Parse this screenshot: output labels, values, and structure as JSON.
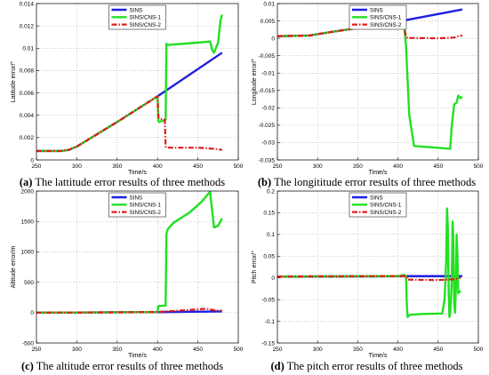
{
  "captions": [
    {
      "tag": "(a)",
      "text": " The lattitude error results of three methods"
    },
    {
      "tag": "(b)",
      "text": " The longititude error results of three methods"
    },
    {
      "tag": "(c)",
      "text": " The altitude error results of three methods"
    },
    {
      "tag": "(d)",
      "text": " The pitch error results of three methods"
    }
  ],
  "colors": {
    "SINS": "#1f1fe0",
    "SINS/CNS-1": "#22e022",
    "SINS/CNS-2": "#e01b1b"
  },
  "chart_data": [
    {
      "type": "line",
      "xlabel": "Time/s",
      "ylabel": "Latitude error/°",
      "xlim": [
        250,
        500
      ],
      "ylim": [
        0,
        0.014
      ],
      "xticks": [
        "250",
        "300",
        "350",
        "400",
        "450",
        "500"
      ],
      "yticks": [
        "0",
        "0.002",
        "0.004",
        "0.006",
        "0.008",
        "0.01",
        "0.012",
        "0.014"
      ],
      "legend_position": "top-center",
      "grid": true,
      "series": [
        {
          "name": "SINS",
          "x": [
            250,
            280,
            290,
            300,
            350,
            400,
            480
          ],
          "y": [
            0.0008,
            0.0008,
            0.0009,
            0.0012,
            0.0034,
            0.0057,
            0.0096
          ]
        },
        {
          "name": "SINS/CNS-1",
          "x": [
            250,
            280,
            290,
            300,
            350,
            400,
            401,
            402,
            410,
            411,
            412,
            450,
            465,
            468,
            470,
            475,
            478,
            480
          ],
          "y": [
            0.0008,
            0.0008,
            0.0009,
            0.0012,
            0.0034,
            0.0057,
            0.0035,
            0.0034,
            0.0036,
            0.0104,
            0.0103,
            0.0105,
            0.0106,
            0.0098,
            0.0096,
            0.0105,
            0.0125,
            0.013
          ]
        },
        {
          "name": "SINS/CNS-2",
          "x": [
            250,
            280,
            290,
            300,
            350,
            400,
            401,
            402,
            409,
            410,
            411,
            450,
            470,
            480
          ],
          "y": [
            0.0008,
            0.0008,
            0.0009,
            0.0012,
            0.0034,
            0.0057,
            0.0038,
            0.0037,
            0.0036,
            0.0012,
            0.0011,
            0.0011,
            0.001,
            0.0009
          ]
        }
      ]
    },
    {
      "type": "line",
      "xlabel": "Time/s",
      "ylabel": "Longitude error/°",
      "xlim": [
        250,
        500
      ],
      "ylim": [
        -0.035,
        0.01
      ],
      "xticks": [
        "250",
        "300",
        "350",
        "400",
        "450",
        "500"
      ],
      "yticks": [
        "-0.035",
        "-0.03",
        "-0.025",
        "-0.02",
        "-0.015",
        "-0.01",
        "-0.005",
        "0",
        "0.005",
        "0.01"
      ],
      "legend_position": "top-center",
      "grid": true,
      "series": [
        {
          "name": "SINS",
          "x": [
            250,
            290,
            300,
            350,
            400,
            480
          ],
          "y": [
            0.0006,
            0.0008,
            0.0012,
            0.003,
            0.0048,
            0.0083
          ]
        },
        {
          "name": "SINS/CNS-1",
          "x": [
            250,
            290,
            300,
            350,
            400,
            402,
            405,
            408,
            410,
            412,
            414,
            420,
            450,
            465,
            467,
            470,
            473,
            475,
            478,
            480
          ],
          "y": [
            0.0006,
            0.0008,
            0.0012,
            0.003,
            0.0048,
            0.0045,
            0.003,
            0.0028,
            -0.002,
            -0.012,
            -0.022,
            -0.031,
            -0.0315,
            -0.0318,
            -0.025,
            -0.019,
            -0.0185,
            -0.0165,
            -0.0172,
            -0.0168
          ]
        },
        {
          "name": "SINS/CNS-2",
          "x": [
            250,
            290,
            300,
            350,
            400,
            405,
            408,
            410,
            412,
            450,
            470,
            475,
            480
          ],
          "y": [
            0.0006,
            0.0008,
            0.0012,
            0.003,
            0.0045,
            0.0032,
            0.0031,
            0.0005,
            0.0001,
            0.0,
            0.0002,
            0.0006,
            0.0008
          ]
        }
      ]
    },
    {
      "type": "line",
      "xlabel": "Time/s",
      "ylabel": "Altitude error/m",
      "xlim": [
        250,
        500
      ],
      "ylim": [
        -500,
        2000
      ],
      "xticks": [
        "250",
        "300",
        "350",
        "400",
        "450",
        "500"
      ],
      "yticks": [
        "-500",
        "0",
        "500",
        "1000",
        "1500",
        "2000"
      ],
      "legend_position": "top-center",
      "grid": true,
      "series": [
        {
          "name": "SINS",
          "x": [
            250,
            300,
            400,
            480
          ],
          "y": [
            0,
            2,
            8,
            20
          ]
        },
        {
          "name": "SINS/CNS-1",
          "x": [
            250,
            300,
            350,
            400,
            401,
            410,
            411,
            413,
            420,
            440,
            455,
            465,
            470,
            475,
            480
          ],
          "y": [
            0,
            2,
            5,
            10,
            110,
            115,
            1300,
            1380,
            1480,
            1650,
            1830,
            1990,
            1400,
            1430,
            1550
          ]
        },
        {
          "name": "SINS/CNS-2",
          "x": [
            250,
            300,
            350,
            400,
            410,
            440,
            460,
            470,
            480
          ],
          "y": [
            0,
            2,
            5,
            10,
            20,
            45,
            65,
            40,
            30
          ]
        }
      ]
    },
    {
      "type": "line",
      "xlabel": "Time/s",
      "ylabel": "Pitch error/°",
      "xlim": [
        250,
        500
      ],
      "ylim": [
        -0.15,
        0.2
      ],
      "xticks": [
        "250",
        "300",
        "350",
        "400",
        "450",
        "500"
      ],
      "yticks": [
        "-0.15",
        "-0.1",
        "-0.05",
        "0",
        "0.05",
        "0.1",
        "0.15",
        "0.2"
      ],
      "legend_position": "top-center",
      "grid": true,
      "series": [
        {
          "name": "SINS",
          "x": [
            250,
            400,
            410,
            470,
            480
          ],
          "y": [
            0.003,
            0.004,
            0.004,
            0.004,
            0.004
          ]
        },
        {
          "name": "SINS/CNS-1",
          "x": [
            250,
            400,
            405,
            408,
            410,
            411,
            412,
            415,
            430,
            455,
            458,
            460,
            461,
            462,
            463,
            464,
            465,
            466,
            467,
            468,
            469,
            470,
            471,
            472,
            473,
            474,
            475,
            478
          ],
          "y": [
            0.003,
            0.004,
            0.006,
            0.007,
            0.004,
            -0.06,
            -0.09,
            -0.085,
            -0.083,
            -0.082,
            -0.05,
            0.04,
            0.16,
            0.12,
            -0.02,
            -0.09,
            -0.08,
            -0.05,
            0.0,
            0.13,
            0.08,
            -0.06,
            -0.08,
            -0.03,
            0.1,
            0.05,
            -0.035,
            -0.03
          ]
        },
        {
          "name": "SINS/CNS-2",
          "x": [
            250,
            400,
            410,
            412,
            450,
            470,
            478
          ],
          "y": [
            0.003,
            0.004,
            0.004,
            -0.004,
            -0.005,
            -0.003,
            0.0
          ]
        }
      ]
    }
  ]
}
